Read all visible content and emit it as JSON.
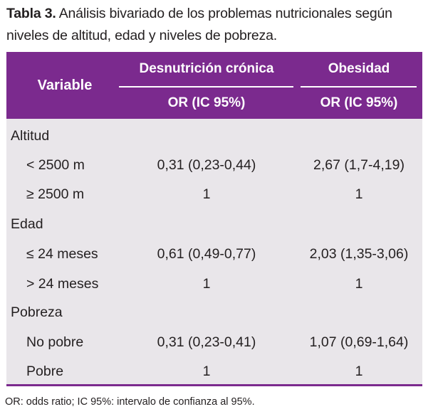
{
  "caption": {
    "label": "Tabla 3.",
    "text": " Análisis bivariado de los problemas nutricionales según niveles de altitud, edad y niveles de pobreza."
  },
  "header": {
    "variable": "Variable",
    "group_desnutricion": "Desnutrición crónica",
    "group_obesidad": "Obesidad",
    "sub_desnutricion": "OR (IC 95%)",
    "sub_obesidad": "OR (IC 95%)"
  },
  "rows": [
    {
      "type": "group",
      "variable": "Altitud",
      "desnutricion": "",
      "obesidad": ""
    },
    {
      "type": "sub",
      "variable": "< 2500 m",
      "desnutricion": "0,31 (0,23-0,44)",
      "obesidad": "2,67 (1,7-4,19)"
    },
    {
      "type": "sub",
      "variable": "≥ 2500 m",
      "desnutricion": "1",
      "obesidad": "1"
    },
    {
      "type": "group",
      "variable": "Edad",
      "desnutricion": "",
      "obesidad": ""
    },
    {
      "type": "sub",
      "variable": "≤ 24 meses",
      "desnutricion": "0,61 (0,49-0,77)",
      "obesidad": "2,03 (1,35-3,06)"
    },
    {
      "type": "sub",
      "variable": "> 24 meses",
      "desnutricion": "1",
      "obesidad": "1"
    },
    {
      "type": "group",
      "variable": "Pobreza",
      "desnutricion": "",
      "obesidad": ""
    },
    {
      "type": "sub",
      "variable": "No pobre",
      "desnutricion": "0,31 (0,23-0,41)",
      "obesidad": "1,07 (0,69-1,64)"
    },
    {
      "type": "sub",
      "variable": "Pobre",
      "desnutricion": "1",
      "obesidad": "1"
    }
  ],
  "footnote": "OR: odds ratio; IC 95%: intervalo de confianza al 95%.",
  "colors": {
    "header_bg": "#7b2a8e",
    "body_bg": "#e9e6ea",
    "text": "#231f20"
  }
}
